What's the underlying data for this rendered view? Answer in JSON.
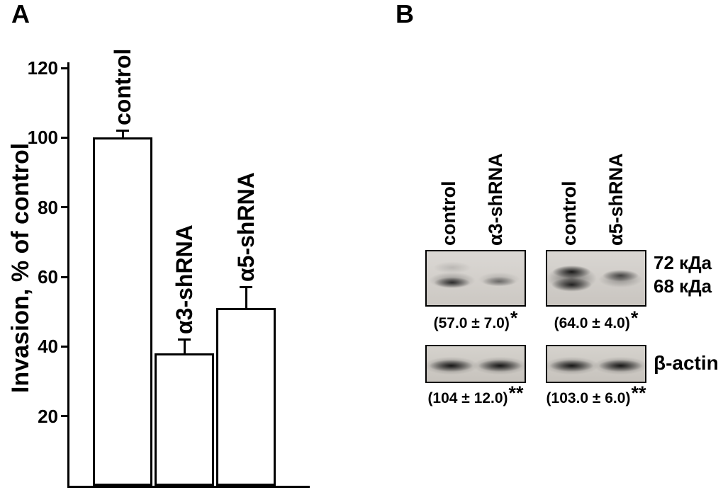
{
  "figure": {
    "panel_a_label": "A",
    "panel_b_label": "B"
  },
  "chart_data": {
    "type": "bar",
    "categories": [
      "control",
      "α3-shRNA",
      "α5-shRNA"
    ],
    "values": [
      100,
      38,
      51
    ],
    "errors": [
      2,
      4,
      6
    ],
    "title": "",
    "xlabel": "",
    "ylabel": "Invasion, % of control",
    "ylim": [
      0,
      120
    ],
    "yticks": [
      20,
      40,
      60,
      80,
      100,
      120
    ],
    "grid": "off",
    "legend": "none",
    "bar_fill": "#ffffff",
    "bar_border": "#000000"
  },
  "blot_section": {
    "groups": [
      {
        "lanes": [
          "control",
          "α3-shRNA"
        ],
        "quant": "(57.0 ± 7.0)",
        "sig": "*",
        "actin_quant": "(104 ± 12.0)",
        "actin_sig": "**"
      },
      {
        "lanes": [
          "control",
          "α5-shRNA"
        ],
        "quant": "(64.0 ± 4.0)",
        "sig": "*",
        "actin_quant": "(103.0 ± 6.0)",
        "actin_sig": "**"
      }
    ],
    "mw_labels": [
      "72 кДа",
      "68 кДа"
    ],
    "actin_label": "β-actin"
  }
}
